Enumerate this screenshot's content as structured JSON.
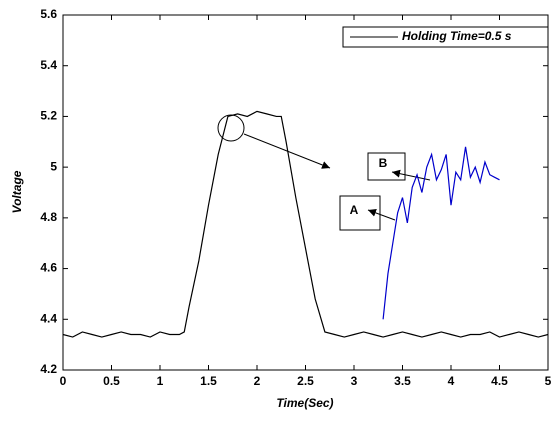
{
  "chart_data": {
    "type": "line",
    "xlabel": "Time(Sec)",
    "ylabel": "Voltage",
    "xlim": [
      0,
      5
    ],
    "ylim": [
      4.2,
      5.6
    ],
    "xticks": [
      0,
      0.5,
      1,
      1.5,
      2,
      2.5,
      3,
      3.5,
      4,
      4.5,
      5
    ],
    "yticks": [
      4.2,
      4.4,
      4.6,
      4.8,
      5,
      5.2,
      5.4,
      5.6
    ],
    "grid": false,
    "legend": "upper right",
    "series": [
      {
        "name": "Holding Time=0.5 s",
        "color": "#000000",
        "x": [
          0,
          0.1,
          0.2,
          0.3,
          0.4,
          0.5,
          0.6,
          0.7,
          0.8,
          0.9,
          1.0,
          1.1,
          1.2,
          1.25,
          1.3,
          1.4,
          1.5,
          1.6,
          1.7,
          1.8,
          1.9,
          2.0,
          2.1,
          2.2,
          2.25,
          2.3,
          2.4,
          2.5,
          2.6,
          2.7,
          2.8,
          2.9,
          3.0,
          3.1,
          3.2,
          3.3,
          3.4,
          3.5,
          3.6,
          3.7,
          3.8,
          3.9,
          4.0,
          4.1,
          4.2,
          4.3,
          4.4,
          4.5,
          4.6,
          4.7,
          4.8,
          4.9,
          5.0
        ],
        "values": [
          4.34,
          4.33,
          4.35,
          4.34,
          4.33,
          4.34,
          4.35,
          4.34,
          4.34,
          4.33,
          4.35,
          4.34,
          4.34,
          4.35,
          4.45,
          4.63,
          4.85,
          5.05,
          5.2,
          5.21,
          5.2,
          5.22,
          5.21,
          5.2,
          5.2,
          5.1,
          4.88,
          4.68,
          4.48,
          4.35,
          4.34,
          4.33,
          4.34,
          4.35,
          4.34,
          4.33,
          4.34,
          4.35,
          4.34,
          4.33,
          4.34,
          4.35,
          4.34,
          4.33,
          4.34,
          4.34,
          4.35,
          4.33,
          4.34,
          4.35,
          4.34,
          4.33,
          4.34
        ]
      },
      {
        "color": "#0000cc",
        "x": [
          3.3,
          3.35,
          3.4,
          3.45,
          3.5,
          3.55,
          3.6,
          3.65,
          3.7,
          3.75,
          3.8,
          3.85,
          3.9,
          3.95,
          4.0,
          4.05,
          4.1,
          4.15,
          4.2,
          4.25,
          4.3,
          4.35,
          4.4,
          4.45,
          4.5
        ],
        "values": [
          4.4,
          4.58,
          4.7,
          4.82,
          4.88,
          4.78,
          4.92,
          4.97,
          4.9,
          5.0,
          5.05,
          4.95,
          4.99,
          5.05,
          4.85,
          4.98,
          4.95,
          5.08,
          4.96,
          5.0,
          4.94,
          5.02,
          4.97,
          4.96,
          4.95
        ]
      }
    ],
    "annotations": [
      "A",
      "B"
    ]
  }
}
